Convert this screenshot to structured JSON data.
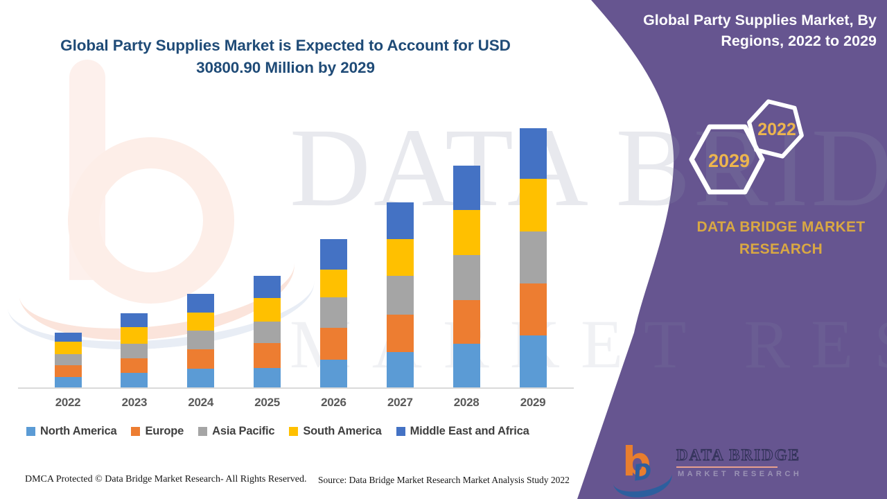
{
  "chart_data": {
    "type": "bar",
    "stacked": true,
    "title": "Global Party Supplies Market is Expected to Account for USD 30800.90 Million by 2029",
    "unit": "USD Million",
    "categories": [
      "2022",
      "2023",
      "2024",
      "2025",
      "2026",
      "2027",
      "2028",
      "2029"
    ],
    "series": [
      {
        "name": "North America",
        "color": "#5B9BD5",
        "values": [
          1240,
          1730,
          2220,
          2310,
          3290,
          4200,
          5190,
          6180
        ]
      },
      {
        "name": "Europe",
        "color": "#ED7D31",
        "values": [
          1400,
          1730,
          2310,
          2960,
          3790,
          4450,
          5190,
          6180
        ]
      },
      {
        "name": "Asia Pacific",
        "color": "#A5A5A5",
        "values": [
          1320,
          1730,
          2220,
          2550,
          3620,
          4610,
          5350,
          6180
        ]
      },
      {
        "name": "South America",
        "color": "#FFC000",
        "values": [
          1480,
          1980,
          2140,
          2800,
          3290,
          4370,
          5350,
          6260
        ]
      },
      {
        "name": "Middle East and Africa",
        "color": "#4472C4",
        "values": [
          1070,
          1650,
          2220,
          2640,
          3620,
          4370,
          5270,
          6000
        ]
      }
    ],
    "total_2029": 30800.9,
    "value_note": "segment values estimated from bar heights scaled to the stated 2029 total of USD 30800.90 Million",
    "xlabel": "",
    "ylabel": "",
    "ylim": [
      0,
      32000
    ],
    "gridlines": false,
    "legend_position": "bottom"
  },
  "side_panel": {
    "title": "Global Party Supplies Market, By Regions, 2022 to 2029",
    "brand": "DATA BRIDGE MARKET RESEARCH",
    "hexagon_back_year": "2029",
    "hexagon_front_year": "2022",
    "background_color": "#665590",
    "accent_text_color": "#D9A843"
  },
  "watermark": {
    "line1": "DATA BRIDGE",
    "line2": "MARKET RESEARCH"
  },
  "footer": {
    "dmca": "DMCA Protected © Data Bridge Market Research- All Rights Reserved.",
    "source": "Source: Data Bridge Market Research Market Analysis Study 2022"
  },
  "logo": {
    "monogram": "b",
    "brand_line1": "DATA BRIDGE",
    "brand_line2": "MARKET RESEARCH"
  }
}
